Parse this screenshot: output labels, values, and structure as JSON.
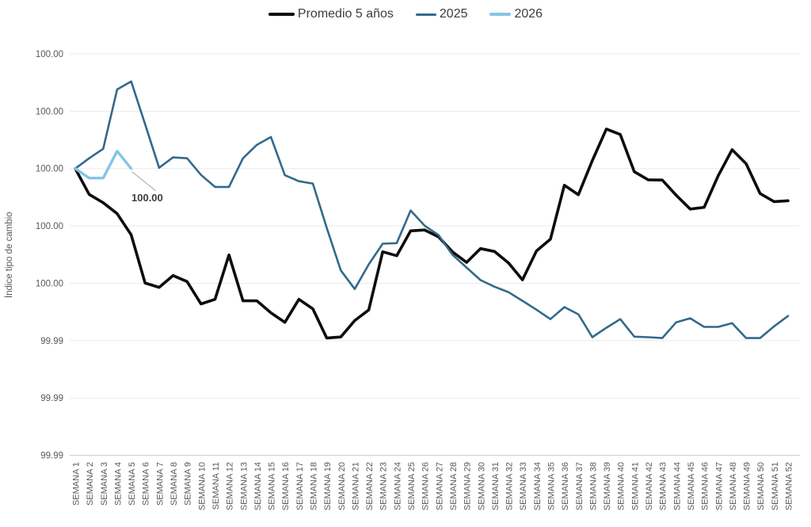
{
  "chart_data": {
    "type": "line",
    "ylabel": "Índice tipo de cambio",
    "legend": {
      "items": [
        {
          "label": "Promedio 5 años"
        },
        {
          "label": "2025"
        },
        {
          "label": "2026"
        }
      ]
    },
    "y_axis": {
      "max": 100.004,
      "min": 99.99,
      "step": 0.002,
      "grid": true,
      "tick_labels": [
        "100.00",
        "100.00",
        "100.00",
        "100.00",
        "100.00",
        "99.99",
        "99.99",
        "99.99"
      ]
    },
    "x_categories": [
      "SEMANA 1",
      "SEMANA 2",
      "SEMANA 3",
      "SEMANA 4",
      "SEMANA 5",
      "SEMANA 6",
      "SEMANA 7",
      "SEMANA 8",
      "SEMANA 9",
      "SEMANA 10",
      "SEMANA 11",
      "SEMANA 12",
      "SEMANA 13",
      "SEMANA 14",
      "SEMANA 15",
      "SEMANA 16",
      "SEMANA 17",
      "SEMANA 18",
      "SEMANA 19",
      "SEMANA 20",
      "SEMANA 21",
      "SEMANA 22",
      "SEMANA 23",
      "SEMANA 24",
      "SEMANA 25",
      "SEMANA 26",
      "SEMANA 27",
      "SEMANA 28",
      "SEMANA 29",
      "SEMANA 30",
      "SEMANA 31",
      "SEMANA 32",
      "SEMANA 33",
      "SEMANA 34",
      "SEMANA 35",
      "SEMANA 36",
      "SEMANA 37",
      "SEMANA 38",
      "SEMANA 39",
      "SEMANA 40",
      "SEMANA 41",
      "SEMANA 42",
      "SEMANA 43",
      "SEMANA 44",
      "SEMANA 45",
      "SEMANA 46",
      "SEMANA 47",
      "SEMANA 48",
      "SEMANA 49",
      "SEMANA 50",
      "SEMANA 51",
      "SEMANA 52"
    ],
    "series": [
      {
        "name": "Promedio 5 años",
        "color": "#0d0d0d",
        "stroke_width": 3.6,
        "values": [
          100.0,
          99.9991,
          99.99881,
          99.99843,
          99.99769,
          99.99601,
          99.99586,
          99.99627,
          99.99606,
          99.99528,
          99.99544,
          99.99699,
          99.99539,
          99.99539,
          99.99497,
          99.99464,
          99.99544,
          99.99511,
          99.99409,
          99.99413,
          99.9947,
          99.99507,
          99.9971,
          99.99696,
          99.99783,
          99.99786,
          99.99762,
          99.99709,
          99.99673,
          99.99721,
          99.99711,
          99.99671,
          99.99612,
          99.99713,
          99.99754,
          99.99942,
          99.99909,
          100.00028,
          100.00138,
          100.00119,
          99.99989,
          99.99961,
          99.9996,
          99.99907,
          99.99859,
          99.99865,
          99.99975,
          100.00066,
          100.00017,
          99.99913,
          99.99885,
          99.99888
        ]
      },
      {
        "name": "2025",
        "color": "#33698c",
        "stroke_width": 2.6,
        "values": [
          100.0,
          100.00036,
          100.00069,
          100.00276,
          100.00304,
          100.00155,
          100.00003,
          100.00039,
          100.00036,
          99.99978,
          99.99936,
          99.99936,
          100.00036,
          100.00083,
          100.0011,
          99.99977,
          99.99956,
          99.99948,
          99.99793,
          99.99645,
          99.9958,
          99.99666,
          99.99738,
          99.9974,
          99.99854,
          99.99801,
          99.99768,
          99.99699,
          99.99655,
          99.99611,
          99.99588,
          99.99569,
          99.99539,
          99.99508,
          99.99475,
          99.99517,
          99.99492,
          99.99412,
          99.99445,
          99.99475,
          99.99414,
          99.99412,
          99.99409,
          99.99464,
          99.99478,
          99.99448,
          99.99448,
          99.99461,
          99.99409,
          99.99409,
          99.9945,
          99.99486
        ]
      },
      {
        "name": "2026",
        "color": "#85c4e8",
        "stroke_width": 3.4,
        "values": [
          100.0,
          99.99967,
          99.99967,
          100.00061,
          100.0
        ]
      }
    ],
    "annotation": {
      "text": "100.00",
      "series": "2026",
      "point_index": 4
    }
  }
}
